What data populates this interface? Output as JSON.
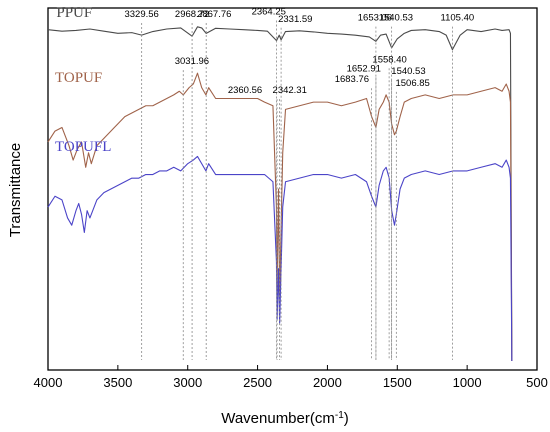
{
  "chart_data": {
    "type": "line",
    "title": "",
    "xlabel": "Wavenumber(cm",
    "xlabel_sup": "-1",
    "xlabel_suffix": ")",
    "ylabel": "Transmittance",
    "xlim": [
      4000,
      500
    ],
    "x_ticks": [
      {
        "value": 4000,
        "label": "4000"
      },
      {
        "value": 3500,
        "label": "3500"
      },
      {
        "value": 3000,
        "label": "3000"
      },
      {
        "value": 2500,
        "label": "2500"
      },
      {
        "value": 2000,
        "label": "2000"
      },
      {
        "value": 1500,
        "label": "1500"
      },
      {
        "value": 1000,
        "label": "1000"
      },
      {
        "value": 500,
        "label": "500"
      }
    ],
    "y_ticks_shown": false,
    "grid": false,
    "series": [
      {
        "name": "PPUF",
        "color": "#4a4a4a",
        "offset": 0.0,
        "points": [
          [
            4000,
            0.06
          ],
          [
            3900,
            0.064
          ],
          [
            3800,
            0.062
          ],
          [
            3700,
            0.058
          ],
          [
            3600,
            0.064
          ],
          [
            3500,
            0.07
          ],
          [
            3400,
            0.068
          ],
          [
            3329.56,
            0.075
          ],
          [
            3250,
            0.065
          ],
          [
            3150,
            0.058
          ],
          [
            3050,
            0.055
          ],
          [
            2968.72,
            0.078
          ],
          [
            2930,
            0.052
          ],
          [
            2900,
            0.055
          ],
          [
            2867.76,
            0.07
          ],
          [
            2800,
            0.056
          ],
          [
            2700,
            0.058
          ],
          [
            2600,
            0.06
          ],
          [
            2500,
            0.062
          ],
          [
            2430,
            0.064
          ],
          [
            2364.25,
            0.09
          ],
          [
            2345,
            0.075
          ],
          [
            2331.59,
            0.088
          ],
          [
            2300,
            0.065
          ],
          [
            2200,
            0.063
          ],
          [
            2100,
            0.066
          ],
          [
            2000,
            0.07
          ],
          [
            1900,
            0.072
          ],
          [
            1800,
            0.075
          ],
          [
            1700,
            0.08
          ],
          [
            1653.06,
            0.092
          ],
          [
            1620,
            0.075
          ],
          [
            1580,
            0.072
          ],
          [
            1540.53,
            0.11
          ],
          [
            1500,
            0.085
          ],
          [
            1450,
            0.07
          ],
          [
            1400,
            0.062
          ],
          [
            1300,
            0.06
          ],
          [
            1200,
            0.065
          ],
          [
            1150,
            0.075
          ],
          [
            1105.4,
            0.115
          ],
          [
            1050,
            0.075
          ],
          [
            1000,
            0.06
          ],
          [
            900,
            0.065
          ],
          [
            800,
            0.058
          ],
          [
            750,
            0.062
          ],
          [
            700,
            0.06
          ],
          [
            690,
            0.07
          ],
          [
            680,
            0.975
          ]
        ]
      },
      {
        "name": "TOPUF",
        "color": "#a0634a",
        "offset": 0.0,
        "points": [
          [
            4000,
            0.37
          ],
          [
            3950,
            0.34
          ],
          [
            3900,
            0.33
          ],
          [
            3850,
            0.38
          ],
          [
            3820,
            0.42
          ],
          [
            3790,
            0.39
          ],
          [
            3760,
            0.37
          ],
          [
            3730,
            0.44
          ],
          [
            3710,
            0.4
          ],
          [
            3690,
            0.43
          ],
          [
            3650,
            0.38
          ],
          [
            3600,
            0.36
          ],
          [
            3550,
            0.34
          ],
          [
            3500,
            0.32
          ],
          [
            3450,
            0.3
          ],
          [
            3400,
            0.29
          ],
          [
            3350,
            0.28
          ],
          [
            3300,
            0.27
          ],
          [
            3250,
            0.27
          ],
          [
            3200,
            0.26
          ],
          [
            3150,
            0.25
          ],
          [
            3100,
            0.24
          ],
          [
            3060,
            0.23
          ],
          [
            3031.96,
            0.24
          ],
          [
            2990,
            0.22
          ],
          [
            2960,
            0.21
          ],
          [
            2930,
            0.18
          ],
          [
            2900,
            0.22
          ],
          [
            2870,
            0.24
          ],
          [
            2850,
            0.22
          ],
          [
            2800,
            0.25
          ],
          [
            2700,
            0.25
          ],
          [
            2600,
            0.25
          ],
          [
            2500,
            0.25
          ],
          [
            2450,
            0.26
          ],
          [
            2390,
            0.27
          ],
          [
            2365,
            0.55
          ],
          [
            2360.56,
            0.78
          ],
          [
            2350,
            0.5
          ],
          [
            2342.31,
            0.8
          ],
          [
            2320,
            0.4
          ],
          [
            2300,
            0.28
          ],
          [
            2200,
            0.27
          ],
          [
            2100,
            0.26
          ],
          [
            2000,
            0.26
          ],
          [
            1900,
            0.27
          ],
          [
            1800,
            0.26
          ],
          [
            1720,
            0.25
          ],
          [
            1683.76,
            0.3
          ],
          [
            1652.91,
            0.33
          ],
          [
            1630,
            0.28
          ],
          [
            1600,
            0.26
          ],
          [
            1580,
            0.24
          ],
          [
            1558.4,
            0.26
          ],
          [
            1540.53,
            0.32
          ],
          [
            1520,
            0.35
          ],
          [
            1506.85,
            0.34
          ],
          [
            1480,
            0.3
          ],
          [
            1450,
            0.26
          ],
          [
            1400,
            0.25
          ],
          [
            1300,
            0.24
          ],
          [
            1200,
            0.25
          ],
          [
            1100,
            0.24
          ],
          [
            1000,
            0.24
          ],
          [
            900,
            0.23
          ],
          [
            800,
            0.22
          ],
          [
            750,
            0.23
          ],
          [
            720,
            0.21
          ],
          [
            700,
            0.23
          ],
          [
            690,
            0.26
          ],
          [
            680,
            0.975
          ]
        ]
      },
      {
        "name": "TOPUFL",
        "color": "#4b44c8",
        "offset": 0.0,
        "points": [
          [
            4000,
            0.55
          ],
          [
            3950,
            0.52
          ],
          [
            3900,
            0.53
          ],
          [
            3860,
            0.58
          ],
          [
            3830,
            0.6
          ],
          [
            3800,
            0.56
          ],
          [
            3780,
            0.54
          ],
          [
            3760,
            0.57
          ],
          [
            3740,
            0.62
          ],
          [
            3720,
            0.56
          ],
          [
            3700,
            0.58
          ],
          [
            3650,
            0.53
          ],
          [
            3600,
            0.51
          ],
          [
            3550,
            0.5
          ],
          [
            3500,
            0.49
          ],
          [
            3450,
            0.48
          ],
          [
            3400,
            0.47
          ],
          [
            3350,
            0.47
          ],
          [
            3300,
            0.46
          ],
          [
            3250,
            0.46
          ],
          [
            3200,
            0.45
          ],
          [
            3150,
            0.45
          ],
          [
            3100,
            0.44
          ],
          [
            3050,
            0.45
          ],
          [
            3000,
            0.43
          ],
          [
            2960,
            0.42
          ],
          [
            2930,
            0.41
          ],
          [
            2900,
            0.43
          ],
          [
            2870,
            0.45
          ],
          [
            2850,
            0.43
          ],
          [
            2800,
            0.46
          ],
          [
            2700,
            0.46
          ],
          [
            2600,
            0.46
          ],
          [
            2500,
            0.46
          ],
          [
            2450,
            0.46
          ],
          [
            2390,
            0.48
          ],
          [
            2365,
            0.7
          ],
          [
            2360,
            0.86
          ],
          [
            2350,
            0.72
          ],
          [
            2342,
            0.87
          ],
          [
            2320,
            0.55
          ],
          [
            2300,
            0.48
          ],
          [
            2200,
            0.47
          ],
          [
            2100,
            0.46
          ],
          [
            2000,
            0.46
          ],
          [
            1900,
            0.47
          ],
          [
            1800,
            0.46
          ],
          [
            1720,
            0.48
          ],
          [
            1684,
            0.52
          ],
          [
            1653,
            0.55
          ],
          [
            1630,
            0.49
          ],
          [
            1600,
            0.45
          ],
          [
            1580,
            0.44
          ],
          [
            1558,
            0.47
          ],
          [
            1540,
            0.56
          ],
          [
            1520,
            0.6
          ],
          [
            1507,
            0.57
          ],
          [
            1480,
            0.5
          ],
          [
            1450,
            0.47
          ],
          [
            1400,
            0.46
          ],
          [
            1300,
            0.45
          ],
          [
            1200,
            0.46
          ],
          [
            1100,
            0.45
          ],
          [
            1000,
            0.45
          ],
          [
            900,
            0.44
          ],
          [
            800,
            0.43
          ],
          [
            750,
            0.44
          ],
          [
            720,
            0.42
          ],
          [
            700,
            0.44
          ],
          [
            690,
            0.47
          ],
          [
            680,
            0.975
          ]
        ]
      }
    ],
    "series_labels": [
      {
        "series": "PPUF",
        "text": "PPUF",
        "x": 3940,
        "y": 0.025
      },
      {
        "series": "TOPUF",
        "text": "TOPUF",
        "x": 3950,
        "y": 0.205
      },
      {
        "series": "TOPUFL",
        "text": "TOPUFL",
        "x": 3950,
        "y": 0.395
      }
    ],
    "peaks": [
      {
        "label": "3329.56",
        "x": 3329.56,
        "series": "PPUF",
        "ly": 0.025,
        "lx": 3329.56
      },
      {
        "label": "2968.72",
        "x": 2968.72,
        "series": "PPUF",
        "ly": 0.025,
        "lx": 2968.72
      },
      {
        "label": "2867.76",
        "x": 2867.76,
        "series": "PPUF",
        "ly": 0.025,
        "lx": 2810
      },
      {
        "label": "2364.25",
        "x": 2364.25,
        "series": "PPUF",
        "ly": 0.018,
        "lx": 2420
      },
      {
        "label": "2331.59",
        "x": 2331.59,
        "series": "PPUF",
        "ly": 0.038,
        "lx": 2230
      },
      {
        "label": "1653.06",
        "x": 1653.06,
        "series": "PPUF",
        "ly": 0.035,
        "lx": 1660
      },
      {
        "label": "1540.53",
        "x": 1540.53,
        "series": "PPUF",
        "ly": 0.035,
        "lx": 1510
      },
      {
        "label": "1105.40",
        "x": 1105.4,
        "series": "PPUF",
        "ly": 0.035,
        "lx": 1070
      },
      {
        "label": "3031.96",
        "x": 3031.96,
        "series": "TOPUF",
        "ly": 0.155,
        "lx": 2970
      },
      {
        "label": "2360.56",
        "x": 2360.56,
        "series": "TOPUF",
        "ly": 0.235,
        "lx": 2590
      },
      {
        "label": "2342.31",
        "x": 2342.31,
        "series": "TOPUF",
        "ly": 0.235,
        "lx": 2270
      },
      {
        "label": "1683.76",
        "x": 1683.76,
        "series": "TOPUF",
        "ly": 0.205,
        "lx": 1825
      },
      {
        "label": "1652.91",
        "x": 1652.91,
        "series": "TOPUF",
        "ly": 0.175,
        "lx": 1740
      },
      {
        "label": "1558.40",
        "x": 1558.4,
        "series": "TOPUF",
        "ly": 0.15,
        "lx": 1555
      },
      {
        "label": "1540.53",
        "x": 1540.53,
        "series": "TOPUF",
        "ly": 0.183,
        "lx": 1420
      },
      {
        "label": "1506.85",
        "x": 1506.85,
        "series": "TOPUF",
        "ly": 0.215,
        "lx": 1390
      }
    ]
  }
}
